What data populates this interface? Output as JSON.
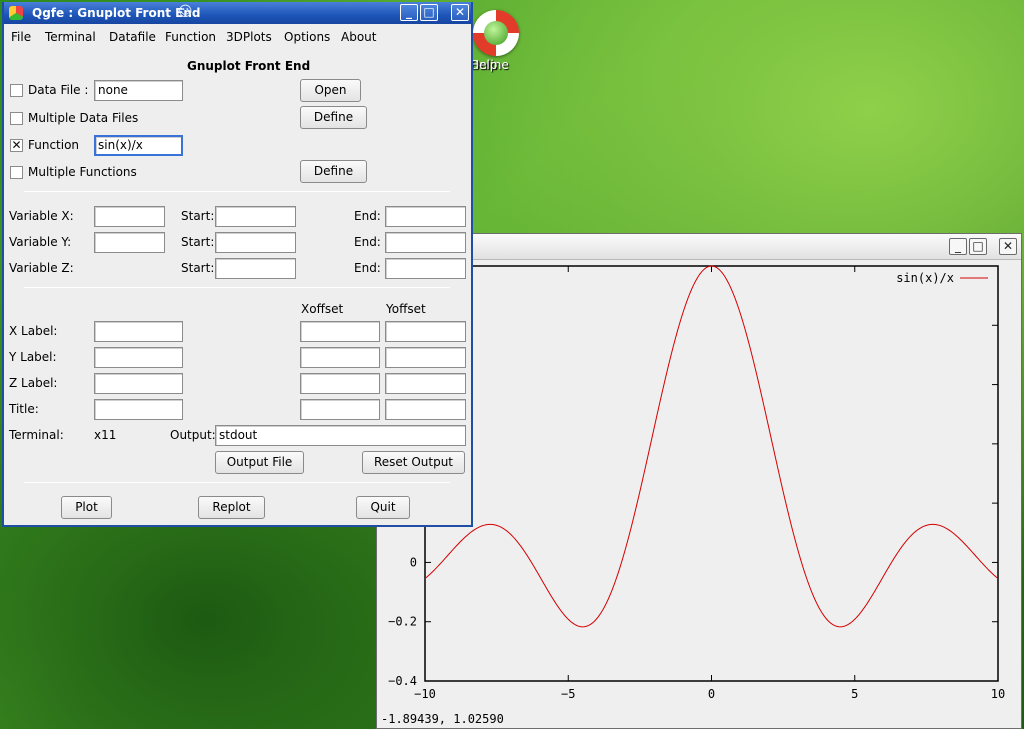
{
  "desktop": {
    "icon_label_line1": "Online",
    "icon_label_line2": "Help"
  },
  "main_window": {
    "title": "Qgfe : Gnuplot Front End",
    "menu": [
      "File",
      "Terminal",
      "Datafile",
      "Function",
      "3DPlots",
      "Options",
      "About"
    ],
    "heading": "Gnuplot Front End",
    "data_file": {
      "label": "Data File :",
      "value": "none",
      "checked": false,
      "button": "Open"
    },
    "multiple_data_files": {
      "label": "Multiple Data Files",
      "checked": false,
      "button": "Define"
    },
    "function": {
      "label": "Function",
      "value": "sin(x)/x",
      "checked": true
    },
    "multiple_functions": {
      "label": "Multiple Functions",
      "checked": false,
      "button": "Define"
    },
    "variables": {
      "x_label": "Variable X:",
      "y_label": "Variable Y:",
      "z_label": "Variable Z:",
      "start_label": "Start:",
      "end_label": "End:"
    },
    "offset_headers": {
      "x": "Xoffset",
      "y": "Yoffset"
    },
    "labels": {
      "x_label": "X Label:",
      "y_label": "Y Label:",
      "z_label": "Z Label:",
      "title": "Title:"
    },
    "terminal": {
      "label": "Terminal:",
      "value": "x11"
    },
    "output": {
      "label": "Output:",
      "value": "stdout"
    },
    "buttons": {
      "output_file": "Output File",
      "reset_output": "Reset Output",
      "plot": "Plot",
      "replot": "Replot",
      "quit": "Quit"
    }
  },
  "plot_window": {
    "coordinates_readout": "-1.89439,  1.02590"
  },
  "colors": {
    "plot_line": "#d40000",
    "titlebar_blue": "#1d55b8"
  },
  "chart_data": {
    "type": "line",
    "function": "sin(x)/x",
    "series": [
      {
        "name": "sin(x)/x",
        "sampled_from": "sin(x)/x"
      }
    ],
    "xlim": [
      -10,
      10
    ],
    "ylim": [
      -0.4,
      1
    ],
    "x_ticks": [
      "−10",
      "−5",
      "0",
      "5",
      "10"
    ],
    "y_ticks": [
      "0",
      "−0.2",
      "−0.4"
    ],
    "legend_position": "top-right",
    "grid": false
  }
}
